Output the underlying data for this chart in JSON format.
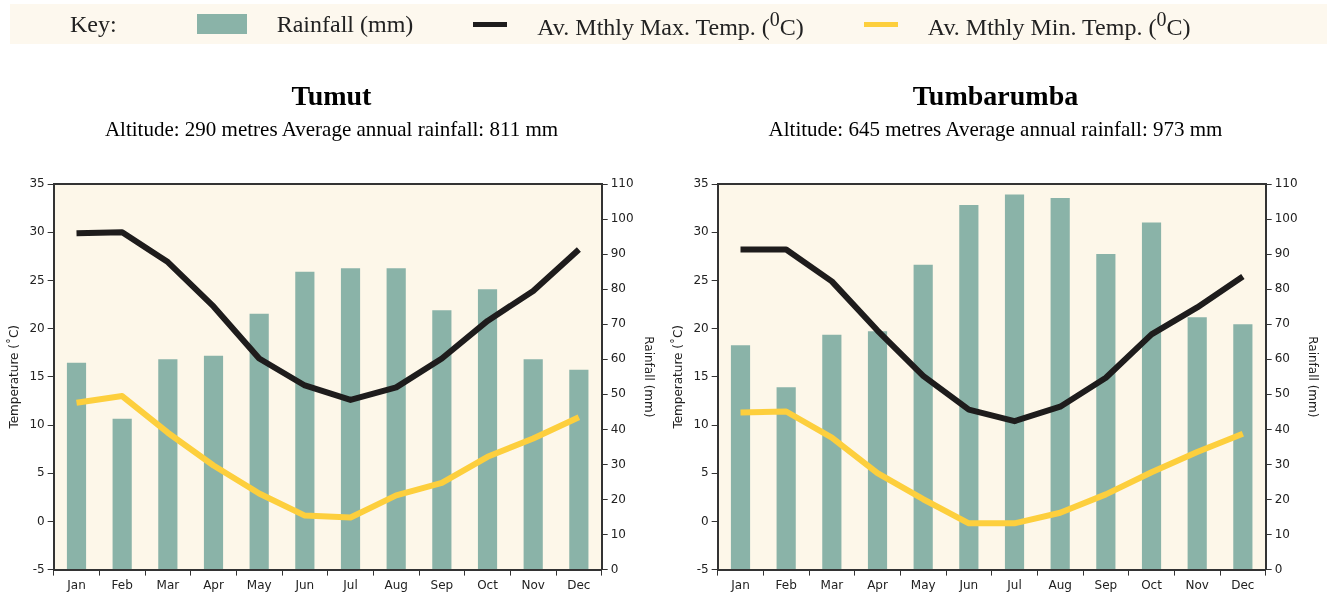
{
  "chart_data": [
    {
      "type": "bar",
      "title": "Tumut",
      "subtitle": "Altitude: 290 metres  Average annual rainfall: 811 mm",
      "legend_title": "Key:",
      "legend": "top",
      "grid": false,
      "categories": [
        "Jan",
        "Feb",
        "Mar",
        "Apr",
        "May",
        "Jun",
        "Jul",
        "Aug",
        "Sep",
        "Oct",
        "Nov",
        "Dec"
      ],
      "ylabel": "Temperature (˚C)",
      "y2label": "Rainfall (mm)",
      "ylim": [
        -5,
        35
      ],
      "yticks": [
        -5,
        0,
        5,
        10,
        15,
        20,
        25,
        30,
        35
      ],
      "y2lim": [
        0,
        110
      ],
      "y2ticks": [
        0,
        10,
        20,
        30,
        40,
        50,
        60,
        70,
        80,
        90,
        100,
        110
      ],
      "series": [
        {
          "name": "Rainfall (mm)",
          "axis": "y2",
          "color": "#8ab3a8",
          "values": [
            59,
            43,
            60,
            61,
            73,
            85,
            86,
            86,
            74,
            80,
            60,
            57
          ]
        },
        {
          "name": "Av. Mthly Max. Temp. ($^{0}$C)",
          "type": "line",
          "color": "#1e1c1c",
          "values": [
            29.9,
            30.0,
            26.9,
            22.3,
            16.9,
            14.1,
            12.6,
            13.9,
            16.9,
            20.8,
            23.9,
            28.2
          ]
        },
        {
          "name": "Av. Mthly Min. Temp. ($^{0}$C)",
          "type": "line",
          "color": "#fdcf3d",
          "values": [
            12.3,
            13.0,
            9.2,
            5.8,
            2.9,
            0.6,
            0.4,
            2.7,
            4.0,
            6.7,
            8.6,
            10.8
          ]
        }
      ]
    },
    {
      "type": "bar",
      "title": "Tumbarumba",
      "subtitle": "Altitude: 645 metres  Average annual rainfall: 973 mm",
      "legend": false,
      "grid": false,
      "categories": [
        "Jan",
        "Feb",
        "Mar",
        "Apr",
        "May",
        "Jun",
        "Jul",
        "Aug",
        "Sep",
        "Oct",
        "Nov",
        "Dec"
      ],
      "ylabel": "Temperature (˚C)",
      "y2label": "Rainfall (mm)",
      "ylim": [
        -5,
        35
      ],
      "yticks": [
        -5,
        0,
        5,
        10,
        15,
        20,
        25,
        30,
        35
      ],
      "y2lim": [
        0,
        110
      ],
      "y2ticks": [
        0,
        10,
        20,
        30,
        40,
        50,
        60,
        70,
        80,
        90,
        100,
        110
      ],
      "series": [
        {
          "axis": "y2",
          "color": "#8ab3a8",
          "values": [
            64,
            52,
            67,
            68,
            87,
            104,
            107,
            106,
            90,
            99,
            72,
            70
          ]
        },
        {
          "type": "line",
          "color": "#1e1c1c",
          "values": [
            28.2,
            28.2,
            24.9,
            19.8,
            15.1,
            11.6,
            10.4,
            11.9,
            14.9,
            19.4,
            22.2,
            25.4
          ]
        },
        {
          "type": "line",
          "color": "#fdcf3d",
          "values": [
            11.3,
            11.4,
            8.7,
            5.0,
            2.3,
            -0.2,
            -0.2,
            0.9,
            2.8,
            5.1,
            7.2,
            9.1
          ]
        }
      ]
    }
  ]
}
